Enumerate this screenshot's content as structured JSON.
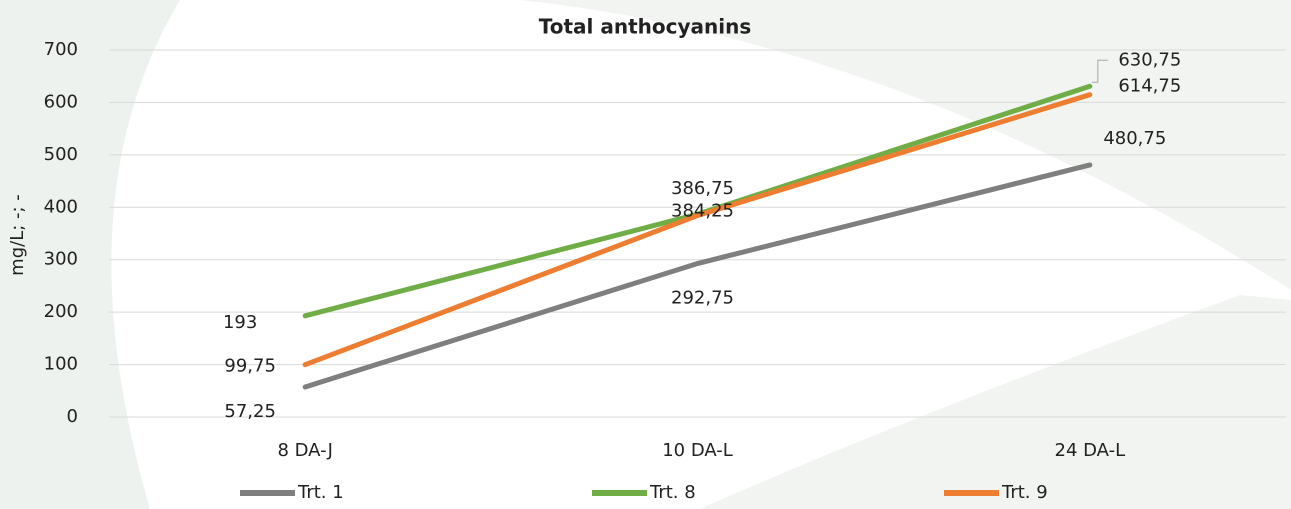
{
  "chart_data": {
    "type": "line",
    "title": "Total anthocyanins",
    "y_label": "mg/L; -; -",
    "categories": [
      "8 DA-J",
      "10 DA-L",
      "24 DA-L"
    ],
    "series": [
      {
        "name": "Trt. 1",
        "color": "#7f7f7f",
        "values": [
          57.25,
          292.75,
          480.75
        ],
        "value_labels": [
          "57,25",
          "292,75",
          "480,75"
        ]
      },
      {
        "name": "Trt. 8",
        "color": "#70ad47",
        "values": [
          193,
          386.75,
          630.75
        ],
        "value_labels": [
          "193",
          "386,75",
          "630,75"
        ]
      },
      {
        "name": "Trt. 9",
        "color": "#ed7d31",
        "values": [
          99.75,
          384.25,
          614.75
        ],
        "value_labels": [
          "99,75",
          "384,25",
          "614,75"
        ]
      }
    ],
    "ylim": [
      0,
      700
    ],
    "yticks": [
      0,
      100,
      200,
      300,
      400,
      500,
      600,
      700
    ],
    "grid": true,
    "legend": "bottom"
  }
}
